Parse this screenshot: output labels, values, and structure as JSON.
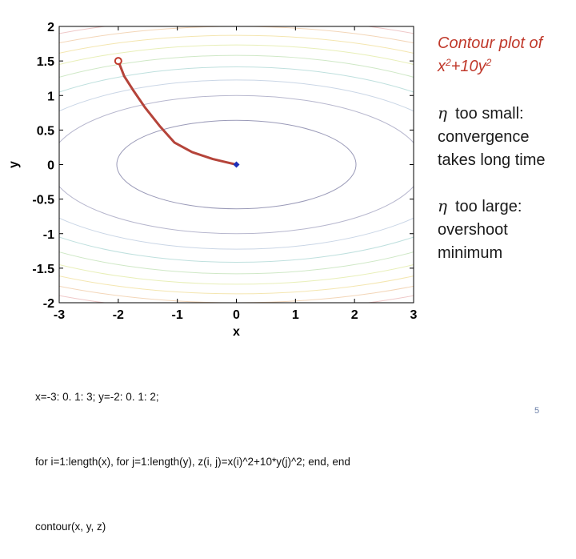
{
  "slide": {
    "title_line1": "Contour plot of",
    "title_base1": "x",
    "title_mid": "+10y",
    "title_sup": "2",
    "note1_symbol": "η",
    "note1_text": "too small: convergence takes long time",
    "note2_symbol": "η",
    "note2_text": "too large: overshoot minimum",
    "code_lines": [
      "x=-3: 0. 1: 3; y=-2: 0. 1: 2;",
      "for i=1:length(x), for j=1:length(y), z(i, j)=x(i)^2+10*y(j)^2; end, end",
      "contour(x, y, z)"
    ],
    "page_number": "5"
  },
  "colors": {
    "title": "#c0392b",
    "path": "#b5443a",
    "start_marker": "#c0392b",
    "end_marker": "#1f2fb8",
    "contour_ramp": [
      "#9a9ab8",
      "#b7b7ce",
      "#cad6e6",
      "#bfe0de",
      "#cfe8c6",
      "#e8efb8",
      "#f4e6b0",
      "#f3d6b8",
      "#efc8c8"
    ]
  },
  "chart_data": {
    "type": "contour",
    "function": "x^2+10y^2",
    "xlabel": "x",
    "ylabel": "y",
    "xlim": [
      -3,
      3
    ],
    "ylim": [
      -2,
      2
    ],
    "xticks": [
      -3,
      -2,
      -1,
      0,
      1,
      2,
      3
    ],
    "yticks": [
      2,
      1.5,
      1,
      0.5,
      0,
      -0.5,
      -1,
      -1.5,
      -2
    ],
    "ytick_labels": [
      "2",
      "1.5",
      "1",
      "0.5",
      "0",
      "-0.5",
      "-1",
      "-1.5",
      "-2"
    ],
    "contour_levels": [
      4.1,
      10,
      15,
      20,
      25,
      30,
      35,
      40,
      45
    ],
    "grid": false,
    "path": [
      {
        "x": -2.0,
        "y": 1.5
      },
      {
        "x": -1.9,
        "y": 1.28
      },
      {
        "x": -1.75,
        "y": 1.08
      },
      {
        "x": -1.55,
        "y": 0.83
      },
      {
        "x": -1.3,
        "y": 0.56
      },
      {
        "x": -1.05,
        "y": 0.32
      },
      {
        "x": -0.75,
        "y": 0.18
      },
      {
        "x": -0.4,
        "y": 0.08
      },
      {
        "x": -0.15,
        "y": 0.03
      },
      {
        "x": 0.0,
        "y": 0.0
      }
    ],
    "start": {
      "x": -2.0,
      "y": 1.5
    },
    "end": {
      "x": 0.0,
      "y": 0.0
    }
  }
}
